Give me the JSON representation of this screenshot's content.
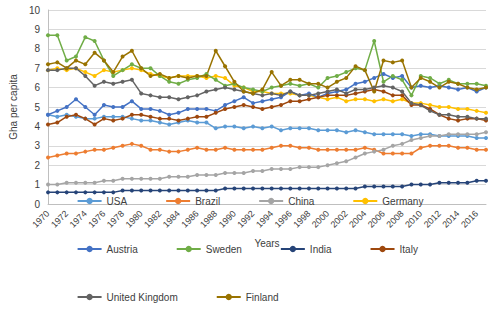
{
  "chart_data": {
    "type": "line",
    "xlabel": "Years",
    "ylabel": "Gha per capita",
    "categories": [
      1970,
      null,
      1972,
      null,
      1974,
      null,
      1976,
      null,
      1978,
      null,
      1980,
      null,
      1982,
      null,
      1984,
      null,
      1986,
      null,
      1988,
      null,
      1990,
      null,
      1992,
      null,
      1994,
      null,
      1996,
      null,
      1998,
      null,
      2000,
      null,
      2002,
      null,
      2004,
      null,
      2006,
      null,
      2008,
      null,
      2010,
      null,
      2012,
      null,
      2014,
      null,
      2016,
      null
    ],
    "ylim": [
      0,
      10
    ],
    "yticks": [
      0,
      1,
      2,
      3,
      4,
      5,
      6,
      7,
      8,
      9,
      10
    ],
    "grid": true,
    "legend": "bottom",
    "marker": "circle",
    "line_style": "solid",
    "series": [
      {
        "name": "USA",
        "color": "#5B9BD5",
        "values": [
          4.6,
          4.5,
          4.6,
          4.5,
          4.4,
          4.4,
          4.5,
          4.5,
          4.5,
          4.4,
          4.3,
          4.3,
          4.2,
          4.1,
          4.2,
          4.3,
          4.2,
          4.2,
          3.9,
          4.0,
          4.0,
          3.9,
          4.0,
          3.9,
          4.0,
          3.8,
          3.9,
          3.9,
          3.9,
          3.8,
          3.8,
          3.8,
          3.7,
          3.8,
          3.7,
          3.6,
          3.6,
          3.6,
          3.6,
          3.5,
          3.6,
          3.6,
          3.5,
          3.5,
          3.5,
          3.5,
          3.4,
          3.4
        ]
      },
      {
        "name": "Brazil",
        "color": "#ED7D31",
        "values": [
          2.4,
          2.5,
          2.6,
          2.6,
          2.7,
          2.8,
          2.8,
          2.9,
          3.0,
          3.1,
          3.0,
          2.8,
          2.8,
          2.7,
          2.7,
          2.8,
          2.9,
          2.8,
          2.8,
          2.9,
          2.8,
          2.8,
          2.8,
          2.8,
          2.9,
          3.0,
          3.0,
          2.9,
          2.9,
          2.8,
          2.8,
          2.8,
          2.8,
          2.8,
          2.9,
          2.8,
          2.6,
          2.6,
          2.6,
          2.6,
          2.9,
          3.0,
          3.0,
          3.0,
          2.9,
          2.9,
          2.8,
          2.8
        ]
      },
      {
        "name": "China",
        "color": "#A5A5A5",
        "values": [
          1.0,
          1.0,
          1.1,
          1.1,
          1.1,
          1.1,
          1.2,
          1.2,
          1.3,
          1.3,
          1.3,
          1.3,
          1.3,
          1.4,
          1.4,
          1.4,
          1.5,
          1.5,
          1.5,
          1.6,
          1.6,
          1.6,
          1.7,
          1.7,
          1.8,
          1.8,
          1.8,
          1.9,
          1.9,
          1.9,
          2.0,
          2.1,
          2.2,
          2.4,
          2.6,
          2.7,
          2.8,
          3.0,
          3.1,
          3.3,
          3.4,
          3.5,
          3.5,
          3.6,
          3.6,
          3.6,
          3.6,
          3.7
        ]
      },
      {
        "name": "Germany",
        "color": "#FFC000",
        "values": [
          6.9,
          7.0,
          6.9,
          7.0,
          6.8,
          6.6,
          6.9,
          6.8,
          6.9,
          7.0,
          6.9,
          6.7,
          6.6,
          6.5,
          6.6,
          6.6,
          6.6,
          6.5,
          6.6,
          6.5,
          6.1,
          6.0,
          5.8,
          5.8,
          5.7,
          5.7,
          5.7,
          5.6,
          5.6,
          5.5,
          5.4,
          5.5,
          5.3,
          5.4,
          5.4,
          5.3,
          5.4,
          5.3,
          5.4,
          5.2,
          5.2,
          5.1,
          5.0,
          5.0,
          4.9,
          4.9,
          4.8,
          4.7
        ]
      },
      {
        "name": "Austria",
        "color": "#4472C4",
        "values": [
          4.6,
          4.8,
          5.0,
          5.4,
          5.0,
          4.6,
          5.1,
          5.0,
          5.0,
          5.3,
          4.9,
          4.9,
          4.8,
          4.6,
          4.7,
          4.9,
          4.9,
          4.9,
          4.8,
          5.1,
          5.3,
          5.5,
          5.2,
          5.3,
          5.4,
          5.5,
          5.8,
          5.6,
          5.7,
          5.5,
          5.7,
          5.8,
          5.9,
          6.2,
          6.3,
          6.5,
          6.7,
          6.5,
          6.6,
          6.0,
          6.1,
          6.0,
          6.1,
          6.0,
          5.9,
          6.0,
          5.8,
          6.0
        ]
      },
      {
        "name": "Sweden",
        "color": "#70AD47",
        "values": [
          8.7,
          8.7,
          7.4,
          7.6,
          8.6,
          8.4,
          7.4,
          6.6,
          6.9,
          7.2,
          7.0,
          7.0,
          6.6,
          6.3,
          6.2,
          6.4,
          6.5,
          6.7,
          6.4,
          6.1,
          6.2,
          6.0,
          5.9,
          5.8,
          6.0,
          6.1,
          6.2,
          6.1,
          6.2,
          6.0,
          6.5,
          6.6,
          6.8,
          7.0,
          6.9,
          8.4,
          6.3,
          6.6,
          6.4,
          5.6,
          6.6,
          6.5,
          6.2,
          6.4,
          6.2,
          6.2,
          6.2,
          6.1
        ]
      },
      {
        "name": "India",
        "color": "#264478",
        "values": [
          0.6,
          0.6,
          0.6,
          0.6,
          0.6,
          0.6,
          0.6,
          0.6,
          0.7,
          0.7,
          0.7,
          0.7,
          0.7,
          0.7,
          0.7,
          0.7,
          0.7,
          0.7,
          0.7,
          0.8,
          0.8,
          0.8,
          0.8,
          0.8,
          0.8,
          0.8,
          0.8,
          0.8,
          0.8,
          0.8,
          0.8,
          0.8,
          0.8,
          0.8,
          0.9,
          0.9,
          0.9,
          0.9,
          0.9,
          1.0,
          1.0,
          1.0,
          1.1,
          1.1,
          1.1,
          1.1,
          1.2,
          1.2
        ]
      },
      {
        "name": "Italy",
        "color": "#9E480E",
        "values": [
          4.1,
          4.2,
          4.5,
          4.6,
          4.4,
          4.1,
          4.4,
          4.3,
          4.4,
          4.6,
          4.6,
          4.5,
          4.4,
          4.4,
          4.3,
          4.4,
          4.5,
          4.5,
          4.7,
          4.9,
          5.0,
          5.1,
          5.0,
          4.9,
          5.0,
          5.1,
          5.3,
          5.3,
          5.4,
          5.5,
          5.6,
          5.6,
          5.6,
          5.7,
          5.8,
          5.9,
          5.8,
          5.6,
          5.6,
          5.1,
          5.1,
          4.9,
          4.6,
          4.4,
          4.3,
          4.4,
          4.4,
          4.3
        ]
      },
      {
        "name": "United Kingdom",
        "color": "#636363",
        "values": [
          6.9,
          6.9,
          7.0,
          7.0,
          6.6,
          6.1,
          6.3,
          6.2,
          6.3,
          6.4,
          5.7,
          5.6,
          5.5,
          5.5,
          5.4,
          5.5,
          5.6,
          5.8,
          5.9,
          6.0,
          5.9,
          5.8,
          5.7,
          5.6,
          5.7,
          5.6,
          5.8,
          5.6,
          5.6,
          5.7,
          5.8,
          5.9,
          5.7,
          5.9,
          5.9,
          6.0,
          6.1,
          6.0,
          5.8,
          5.2,
          5.1,
          4.8,
          4.6,
          4.6,
          4.5,
          4.5,
          4.4,
          4.4
        ]
      },
      {
        "name": "Finland",
        "color": "#997300",
        "values": [
          7.2,
          7.3,
          7.0,
          7.4,
          7.2,
          7.8,
          7.4,
          6.8,
          7.6,
          7.9,
          7.0,
          6.6,
          6.7,
          6.5,
          6.6,
          6.5,
          6.6,
          6.6,
          7.9,
          7.1,
          6.3,
          5.8,
          5.7,
          5.9,
          6.8,
          6.1,
          6.4,
          6.4,
          6.2,
          6.2,
          6.0,
          6.3,
          6.5,
          7.1,
          6.9,
          5.8,
          7.4,
          7.3,
          7.4,
          6.0,
          6.5,
          6.3,
          6.0,
          6.3,
          6.2,
          6.0,
          5.9,
          6.0
        ]
      }
    ]
  }
}
